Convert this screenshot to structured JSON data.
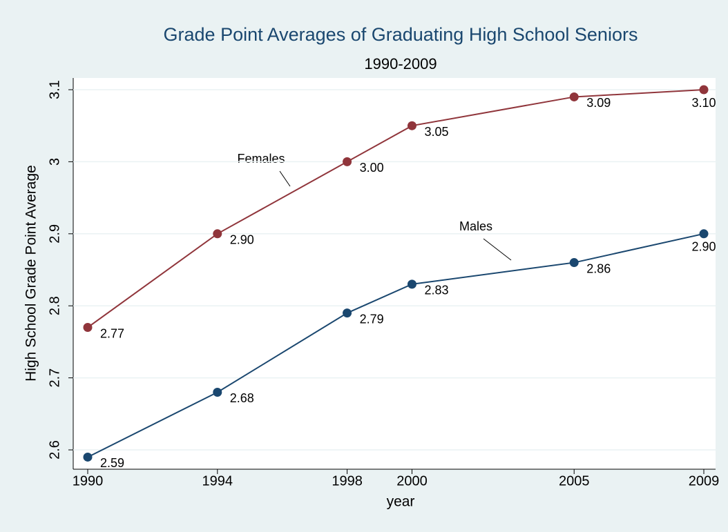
{
  "chart_data": {
    "type": "line",
    "title": "Grade Point Averages of Graduating High School Seniors",
    "subtitle": "1990-2009",
    "x_label": "year",
    "y_label": "High School Grade Point Average",
    "x": [
      1990,
      1994,
      1998,
      2000,
      2005,
      2009
    ],
    "series": [
      {
        "name": "Females",
        "color": "#90353b",
        "values": [
          2.77,
          2.9,
          3.0,
          3.05,
          3.09,
          3.1
        ],
        "value_labels": [
          "2.77",
          "2.90",
          "3.00",
          "3.05",
          "3.09",
          "3.10"
        ]
      },
      {
        "name": "Males",
        "color": "#1a476f",
        "values": [
          2.59,
          2.68,
          2.79,
          2.83,
          2.86,
          2.9
        ],
        "value_labels": [
          "2.59",
          "2.68",
          "2.79",
          "2.83",
          "2.86",
          "2.90"
        ]
      }
    ],
    "xlim": [
      1990,
      2009
    ],
    "xticks": [
      1990,
      1994,
      1998,
      2000,
      2005,
      2009
    ],
    "ylim": [
      2.6,
      3.1
    ],
    "yticks": [
      2.6,
      2.7,
      2.8,
      2.9,
      3,
      3.1
    ],
    "grid": true
  }
}
